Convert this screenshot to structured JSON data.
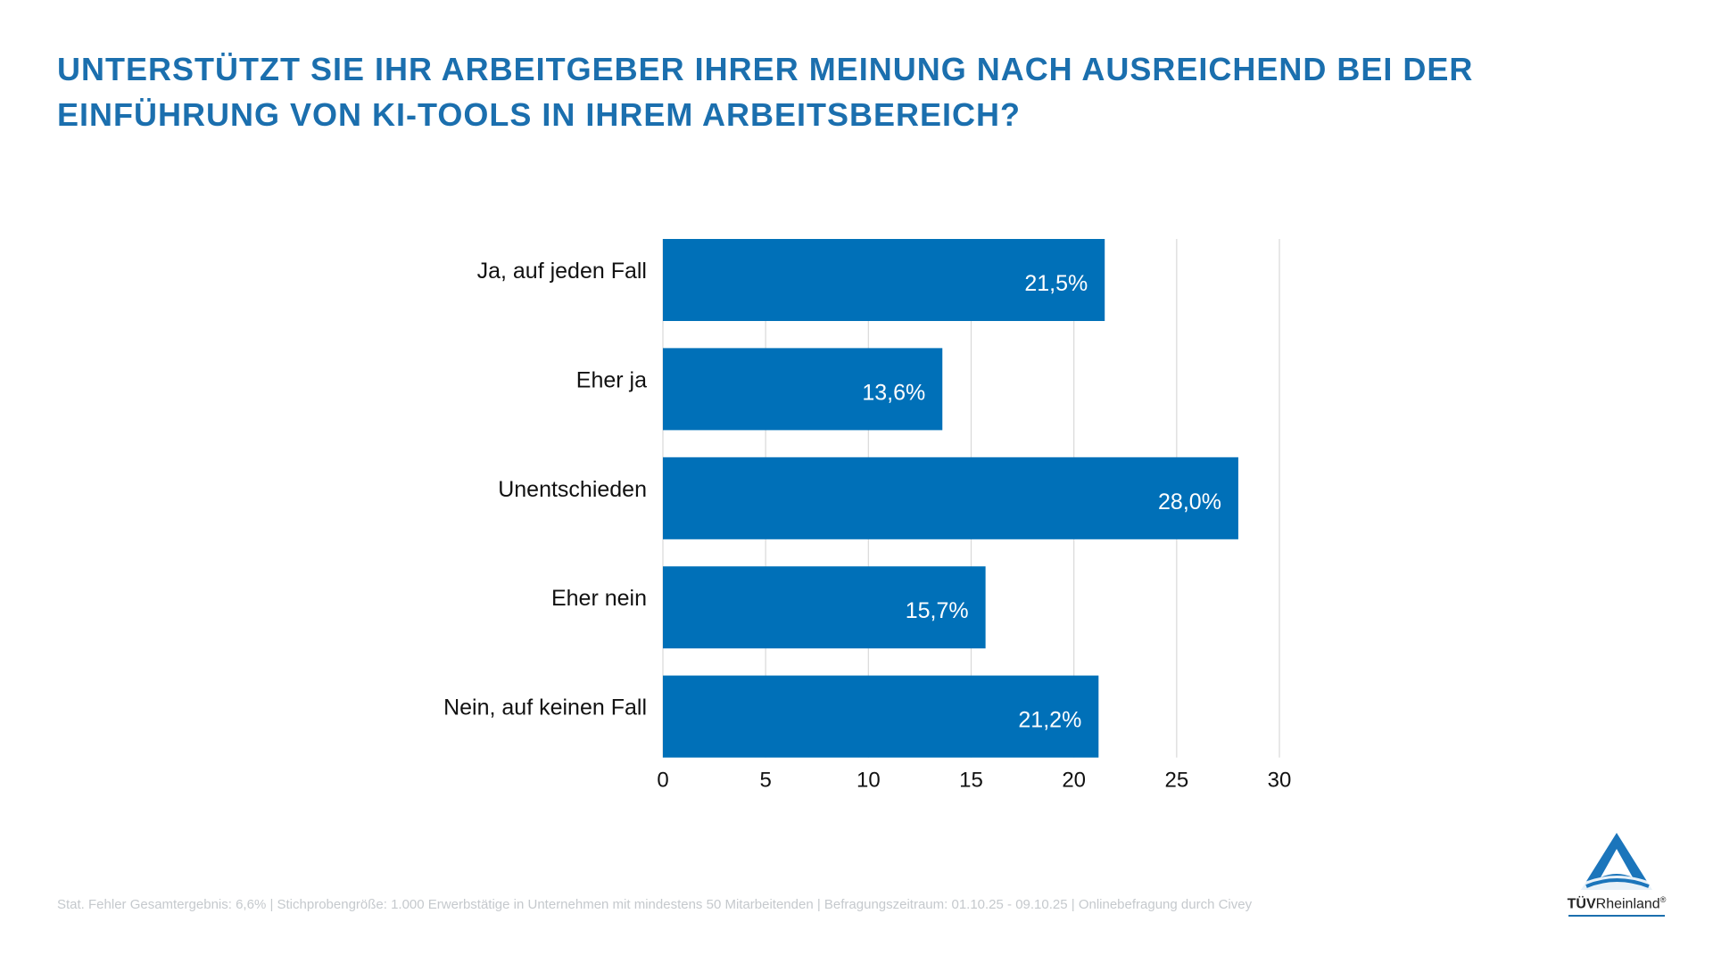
{
  "title": "UNTERSTÜTZT SIE IHR ARBEITGEBER IHRER MEINUNG NACH AUSREICHEND BEI DER EINFÜHRUNG VON KI-TOOLS IN IHREM ARBEITSBEREICH?",
  "footer": "Stat. Fehler Gesamtergebnis: 6,6% | Stichprobengröße: 1.000 Erwerbstätige in Unternehmen mit mindestens 50 Mitarbeitenden | Befragungszeitraum: 01.10.25 - 09.10.25 | Onlinebefragung durch Civey",
  "logo": {
    "bold": "TÜV",
    "rest": "Rheinland",
    "mark": "®"
  },
  "colors": {
    "bar": "#0070b8",
    "title": "#1b6fae",
    "grid": "#d9d9d9"
  },
  "chart_data": {
    "type": "bar",
    "orientation": "horizontal",
    "categories": [
      "Ja, auf jeden Fall",
      "Eher ja",
      "Unentschieden",
      "Eher nein",
      "Nein, auf keinen Fall"
    ],
    "values": [
      21.5,
      13.6,
      28.0,
      15.7,
      21.2
    ],
    "data_labels": [
      "21,5%",
      "13,6%",
      "28,0%",
      "15,7%",
      "21,2%"
    ],
    "xlim": [
      0,
      30
    ],
    "xticks": [
      "0",
      "5",
      "10",
      "15",
      "20",
      "25",
      "30"
    ],
    "grid": true,
    "legend": "none"
  }
}
